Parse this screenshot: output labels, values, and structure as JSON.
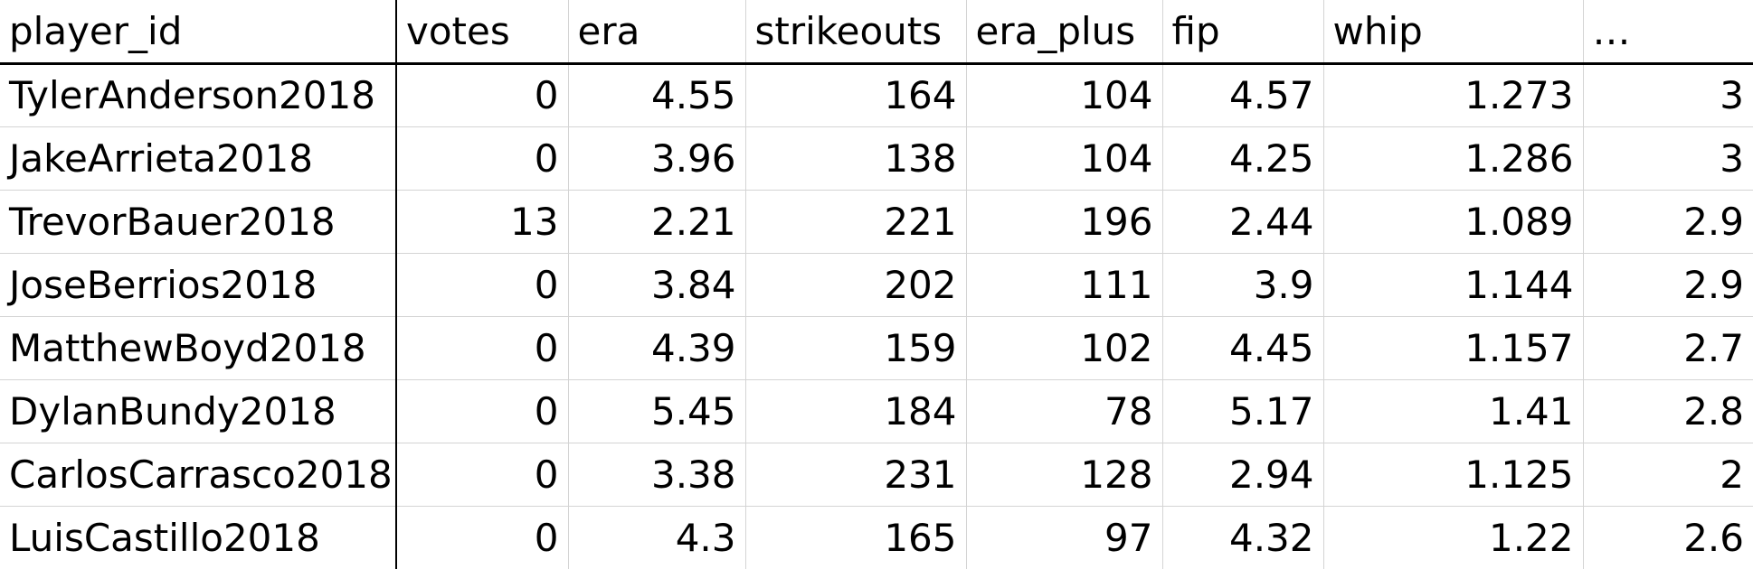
{
  "table": {
    "columns": [
      "player_id",
      "votes",
      "era",
      "strikeouts",
      "era_plus",
      "fip",
      "whip",
      "…"
    ],
    "rows": [
      [
        "TylerAnderson2018",
        "0",
        "4.55",
        "164",
        "104",
        "4.57",
        "1.273",
        "3"
      ],
      [
        "JakeArrieta2018",
        "0",
        "3.96",
        "138",
        "104",
        "4.25",
        "1.286",
        "3"
      ],
      [
        "TrevorBauer2018",
        "13",
        "2.21",
        "221",
        "196",
        "2.44",
        "1.089",
        "2.9"
      ],
      [
        "JoseBerrios2018",
        "0",
        "3.84",
        "202",
        "111",
        "3.9",
        "1.144",
        "2.9"
      ],
      [
        "MatthewBoyd2018",
        "0",
        "4.39",
        "159",
        "102",
        "4.45",
        "1.157",
        "2.7"
      ],
      [
        "DylanBundy2018",
        "0",
        "5.45",
        "184",
        "78",
        "5.17",
        "1.41",
        "2.8"
      ],
      [
        "CarlosCarrasco2018",
        "0",
        "3.38",
        "231",
        "128",
        "2.94",
        "1.125",
        "2"
      ],
      [
        "LuisCastillo2018",
        "0",
        "4.3",
        "165",
        "97",
        "4.32",
        "1.22",
        "2.6"
      ]
    ]
  }
}
